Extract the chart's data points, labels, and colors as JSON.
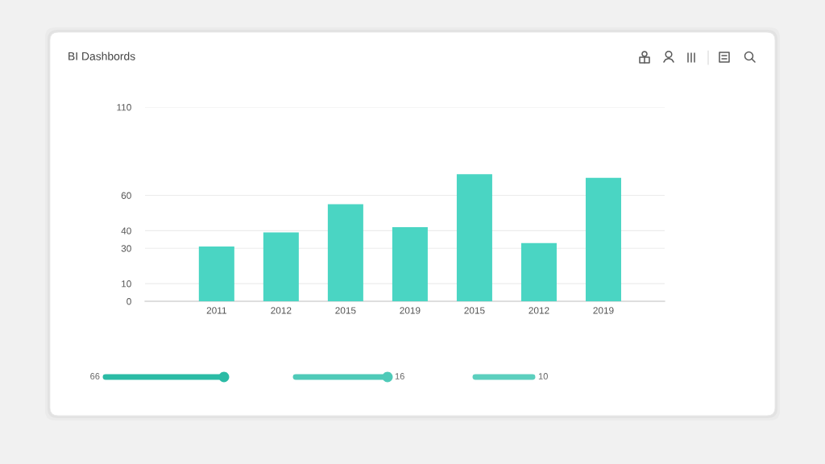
{
  "chart_data": {
    "type": "bar",
    "title": "BI Dashbords",
    "categories": [
      "2011",
      "2012",
      "2015",
      "2019",
      "2015",
      "2012",
      "2019"
    ],
    "values": [
      31,
      39,
      55,
      42,
      72,
      33,
      70
    ],
    "color": "#4ad5c3",
    "ylim": [
      0,
      110
    ],
    "yticks": [
      0,
      10,
      30,
      40,
      60,
      110
    ],
    "grid": "y",
    "annotations": [
      "66",
      "16",
      "10"
    ]
  }
}
